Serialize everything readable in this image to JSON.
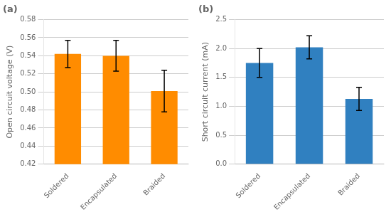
{
  "chart_data": [
    {
      "type": "bar",
      "title": "(a)",
      "categories": [
        "Soldered",
        "Encapsulated",
        "Braided"
      ],
      "values": [
        0.542,
        0.54,
        0.501
      ],
      "errors": [
        0.015,
        0.017,
        0.023
      ],
      "color": "#FF8C00",
      "ylabel": "Open circuit voltage (V)",
      "ylim": [
        0.42,
        0.58
      ],
      "yticks": [
        0.42,
        0.44,
        0.46,
        0.48,
        {
          "value": 0.5,
          "label": "0.50"
        },
        0.52,
        0.54,
        0.56,
        0.58
      ],
      "grid": true
    },
    {
      "type": "bar",
      "title": "(b)",
      "categories": [
        "Soldered",
        "Encapsulated",
        "Braided"
      ],
      "values": [
        1.75,
        2.02,
        1.13
      ],
      "errors": [
        0.25,
        0.2,
        0.2
      ],
      "color": "#3080C0",
      "ylabel": "Short circuit current (mA)",
      "ylim": [
        0,
        2.5
      ],
      "yticks": [
        {
          "value": 0,
          "label": "0.0"
        },
        0.5,
        {
          "value": 1.0,
          "label": "1.0"
        },
        1.5,
        {
          "value": 2.0,
          "label": "2.0"
        },
        2.5
      ],
      "grid": true
    }
  ]
}
